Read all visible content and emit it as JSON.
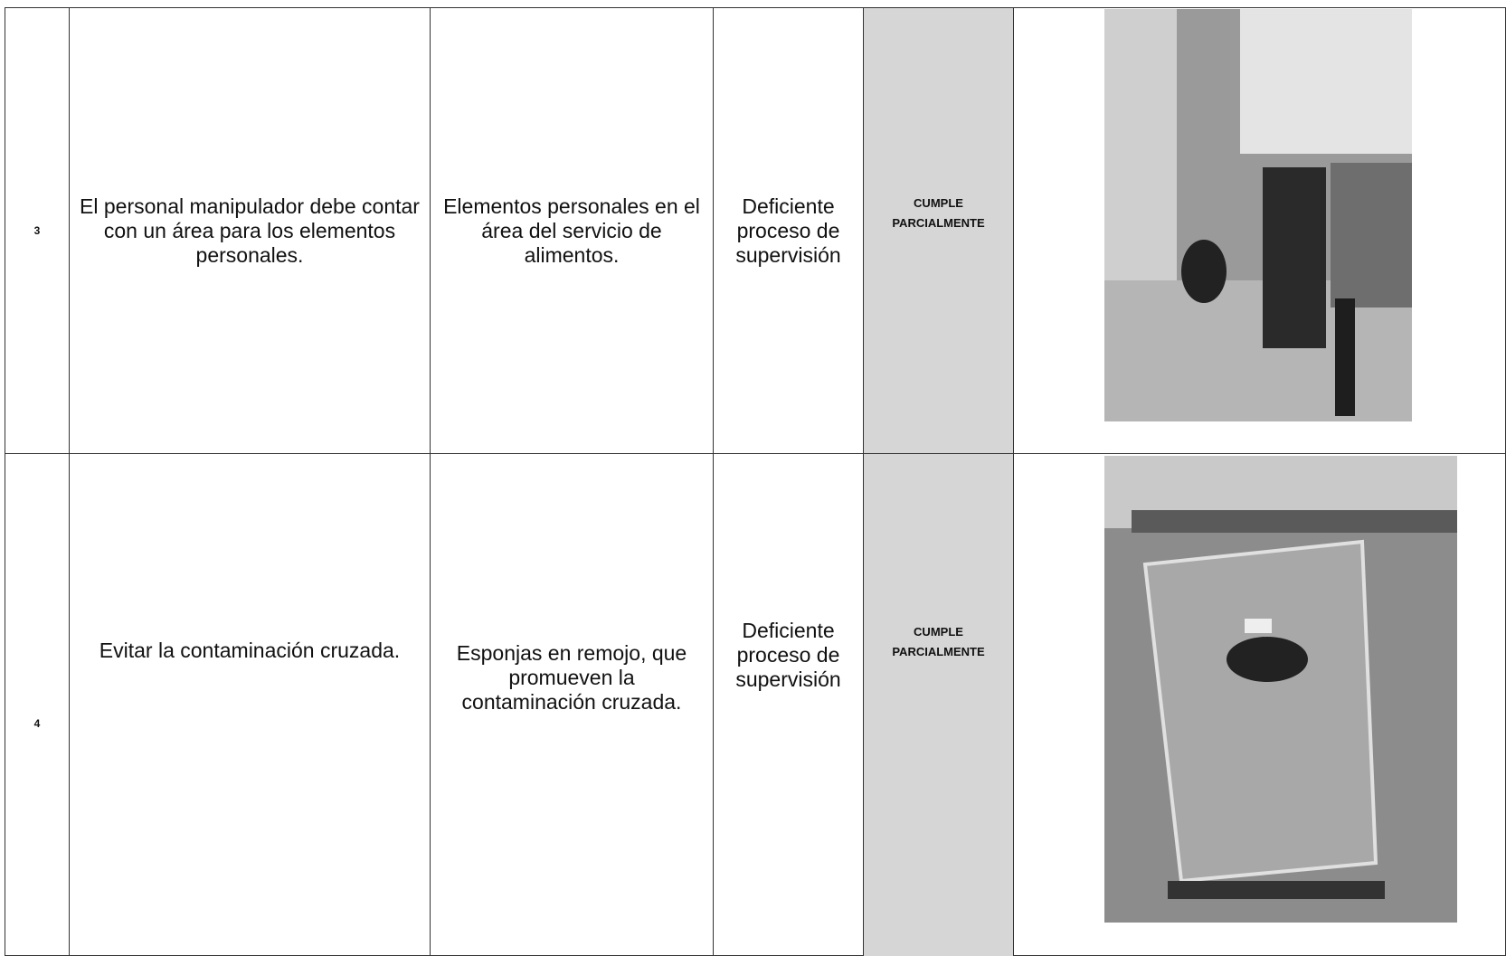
{
  "table": {
    "rows": [
      [
        "3",
        "El personal manipulador debe contar con un área para los elementos personales.",
        "Elementos personales en el área del servicio de alimentos.",
        "Deficiente proceso de supervisión",
        "CUMPLE PARCIALMENTE"
      ],
      [
        "4",
        "Evitar la contaminación cruzada.",
        "Esponjas en remojo, que promueven la contaminación cruzada.",
        "Deficiente proceso de supervisión",
        "CUMPLE PARCIALMENTE"
      ]
    ]
  }
}
